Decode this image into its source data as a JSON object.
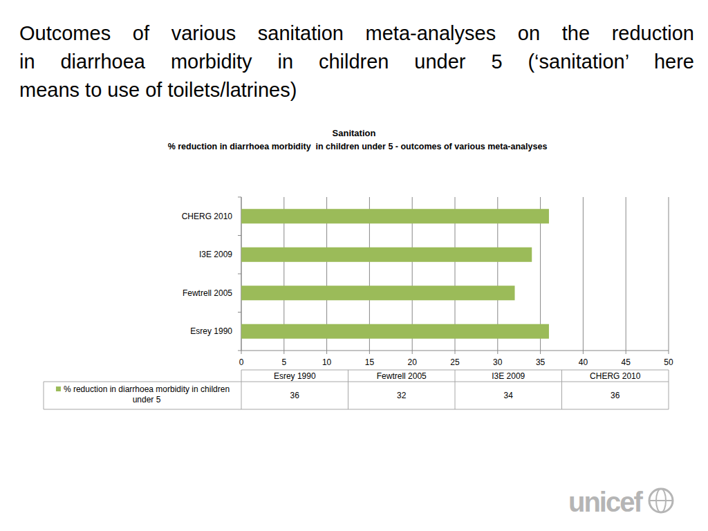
{
  "slide_title_lines": [
    "Outcomes of various sanitation meta-analyses on the reduction",
    "in diarrhoea morbidity in children under 5 (‘sanitation’ here",
    "means to use of toilets/latrines)"
  ],
  "logo": "unicef",
  "chart_data": {
    "type": "bar",
    "orientation": "horizontal",
    "title": "Sanitation",
    "subtitle": "% reduction in diarrhoea morbidity  in children under 5 - outcomes of various meta-analyses",
    "categories": [
      "Esrey 1990",
      "Fewtrell 2005",
      "I3E 2009",
      "CHERG 2010"
    ],
    "series": [
      {
        "name": "% reduction in diarrhoea morbidity in children under 5",
        "color": "#9bbb59",
        "values": [
          36,
          32,
          34,
          36
        ]
      }
    ],
    "xlim": [
      0,
      50
    ],
    "xticks": [
      0,
      5,
      10,
      15,
      20,
      25,
      30,
      35,
      40,
      45,
      50
    ],
    "grid": true
  }
}
